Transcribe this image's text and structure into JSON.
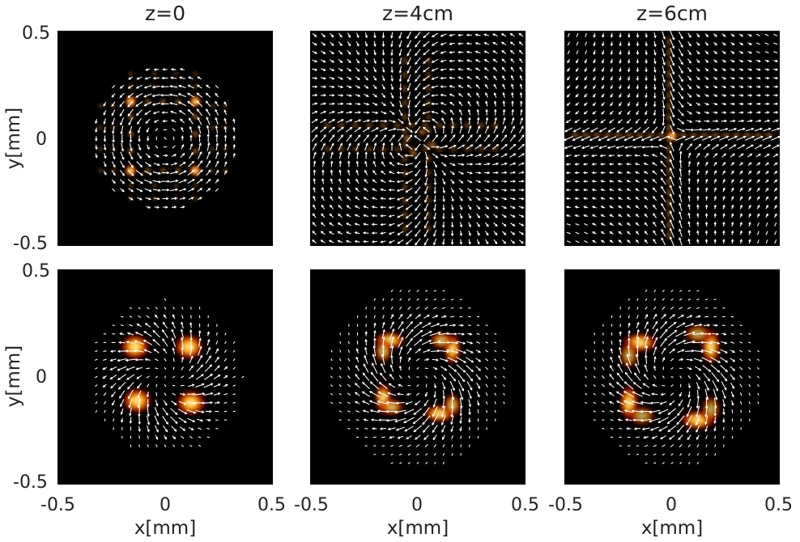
{
  "chart_data": [
    {
      "type": "heatmap",
      "title": "z=0",
      "row": "top",
      "pattern": "square-ring",
      "xlim": [
        -0.5,
        0.5
      ],
      "ylim": [
        -0.5,
        0.5
      ]
    },
    {
      "type": "heatmap",
      "title": "z=4cm",
      "row": "top",
      "pattern": "cross-faint",
      "xlim": [
        -0.5,
        0.5
      ],
      "ylim": [
        -0.5,
        0.5
      ]
    },
    {
      "type": "heatmap",
      "title": "z=6cm",
      "row": "top",
      "pattern": "cross-center",
      "xlim": [
        -0.5,
        0.5
      ],
      "ylim": [
        -0.5,
        0.5
      ]
    },
    {
      "type": "heatmap",
      "title": "",
      "row": "bottom",
      "pattern": "four-lobes",
      "xlim": [
        -0.5,
        0.5
      ],
      "ylim": [
        -0.5,
        0.5
      ]
    },
    {
      "type": "heatmap",
      "title": "",
      "row": "bottom",
      "pattern": "pinwheel-1",
      "xlim": [
        -0.5,
        0.5
      ],
      "ylim": [
        -0.5,
        0.5
      ]
    },
    {
      "type": "heatmap",
      "title": "",
      "row": "bottom",
      "pattern": "pinwheel-2",
      "xlim": [
        -0.5,
        0.5
      ],
      "ylim": [
        -0.5,
        0.5
      ]
    }
  ],
  "axes": {
    "xlabel": "x[mm]",
    "ylabel": "y[mm]",
    "y_ticks": [
      "0.5",
      "0",
      "-0.5"
    ],
    "x_ticks": [
      "-0.5",
      "0",
      "0.5"
    ]
  },
  "colors": {
    "background": "#000000",
    "arrow": "#ffffff",
    "hot_low": "#5a0000",
    "hot_mid": "#d01e00",
    "hot_high": "#ffffc8"
  }
}
